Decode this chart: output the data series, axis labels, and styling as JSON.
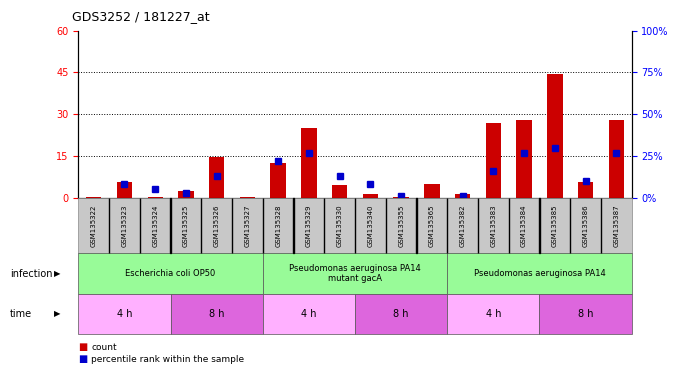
{
  "title": "GDS3252 / 181227_at",
  "samples": [
    "GSM135322",
    "GSM135323",
    "GSM135324",
    "GSM135325",
    "GSM135326",
    "GSM135327",
    "GSM135328",
    "GSM135329",
    "GSM135330",
    "GSM135340",
    "GSM135355",
    "GSM135365",
    "GSM135382",
    "GSM135383",
    "GSM135384",
    "GSM135385",
    "GSM135386",
    "GSM135387"
  ],
  "counts": [
    0.3,
    5.5,
    0.3,
    2.5,
    14.5,
    0.3,
    12.5,
    25.0,
    4.5,
    1.5,
    0.3,
    5.0,
    1.5,
    27.0,
    28.0,
    44.5,
    5.5,
    28.0
  ],
  "percentile_ranks": [
    0,
    8,
    5,
    3,
    13,
    0,
    22,
    27,
    13,
    8,
    1,
    0,
    1,
    16,
    27,
    30,
    10,
    27
  ],
  "ylim_left": [
    0,
    60
  ],
  "ylim_right": [
    0,
    100
  ],
  "yticks_left": [
    0,
    15,
    30,
    45,
    60
  ],
  "yticks_right": [
    0,
    25,
    50,
    75,
    100
  ],
  "ytick_labels_right": [
    "0%",
    "25%",
    "50%",
    "75%",
    "100%"
  ],
  "infection_groups": [
    {
      "label": "Escherichia coli OP50",
      "start": 0,
      "end": 5,
      "color": "#98FB98"
    },
    {
      "label": "Pseudomonas aeruginosa PA14\nmutant gacA",
      "start": 6,
      "end": 11,
      "color": "#98FB98"
    },
    {
      "label": "Pseudomonas aeruginosa PA14",
      "start": 12,
      "end": 17,
      "color": "#98FB98"
    }
  ],
  "time_groups": [
    {
      "label": "4 h",
      "start": 0,
      "end": 2,
      "color": "#FFB0FF"
    },
    {
      "label": "8 h",
      "start": 3,
      "end": 5,
      "color": "#DD66DD"
    },
    {
      "label": "4 h",
      "start": 6,
      "end": 8,
      "color": "#FFB0FF"
    },
    {
      "label": "8 h",
      "start": 9,
      "end": 11,
      "color": "#DD66DD"
    },
    {
      "label": "4 h",
      "start": 12,
      "end": 14,
      "color": "#FFB0FF"
    },
    {
      "label": "8 h",
      "start": 15,
      "end": 17,
      "color": "#DD66DD"
    }
  ],
  "bar_color": "#CC0000",
  "pct_color": "#0000CC",
  "bg_color": "#FFFFFF",
  "tick_bg_color": "#C8C8C8",
  "infection_label": "infection",
  "time_label": "time",
  "legend_count": "count",
  "legend_pct": "percentile rank within the sample"
}
